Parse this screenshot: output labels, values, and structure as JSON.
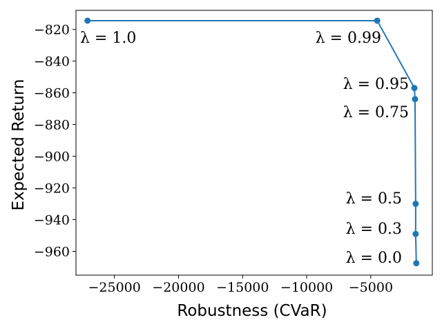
{
  "chart_data": {
    "type": "line",
    "xlabel": "Robustness (CVaR)",
    "ylabel": "Expected Return",
    "xlim": [
      -28000,
      -200
    ],
    "ylim": [
      -975,
      -808
    ],
    "xticks": [
      -25000,
      -20000,
      -15000,
      -10000,
      -5000
    ],
    "yticks": [
      -820,
      -840,
      -860,
      -880,
      -900,
      -920,
      -940,
      -960
    ],
    "xtick_labels": [
      "−25000",
      "−20000",
      "−15000",
      "−10000",
      "−5000"
    ],
    "ytick_labels": [
      "−820",
      "−840",
      "−860",
      "−880",
      "−900",
      "−920",
      "−940",
      "−960"
    ],
    "series": [
      {
        "color": "#1f77b4",
        "marker": "circle",
        "x": [
          -27100,
          -4500,
          -1600,
          -1550,
          -1500,
          -1500,
          -1450
        ],
        "y": [
          -814.5,
          -814.5,
          -857,
          -864,
          -930,
          -949,
          -967.5
        ]
      }
    ],
    "annotations": [
      {
        "text": "λ = 1.0"
      },
      {
        "text": "λ = 0.99"
      },
      {
        "text": "λ = 0.95"
      },
      {
        "text": "λ = 0.75"
      },
      {
        "text": "λ = 0.5"
      },
      {
        "text": "λ = 0.3"
      },
      {
        "text": "λ = 0.0"
      }
    ],
    "grid": false
  }
}
